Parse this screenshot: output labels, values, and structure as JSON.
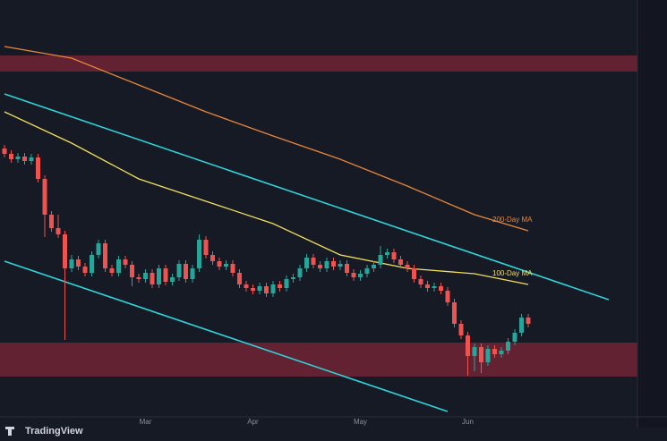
{
  "chart_data": {
    "type": "candlestick",
    "categories": [
      null,
      null,
      null,
      null,
      null,
      null,
      null,
      null,
      null,
      null,
      null,
      null,
      null,
      null,
      null,
      null,
      null,
      null,
      null,
      null,
      null,
      "Mar",
      null,
      null,
      null,
      null,
      null,
      null,
      null,
      null,
      null,
      null,
      null,
      null,
      null,
      null,
      null,
      "Apr",
      null,
      null,
      null,
      null,
      null,
      null,
      null,
      null,
      null,
      null,
      null,
      null,
      null,
      null,
      null,
      "May",
      null,
      null,
      null,
      null,
      null,
      null,
      null,
      null,
      null,
      null,
      null,
      null,
      null,
      null,
      null,
      "Jun",
      null,
      null,
      null,
      null,
      null,
      null,
      null,
      null,
      null
    ],
    "open": [
      299,
      293,
      287,
      290,
      285,
      289,
      265,
      225,
      210,
      203,
      165,
      175,
      167,
      160,
      180,
      193,
      165,
      160,
      175,
      169,
      155,
      153,
      160,
      147,
      165,
      150,
      155,
      170,
      153,
      165,
      197,
      180,
      173,
      167,
      170,
      160,
      147,
      143,
      140,
      145,
      137,
      147,
      143,
      153,
      155,
      165,
      177,
      169,
      165,
      173,
      167,
      170,
      160,
      155,
      159,
      165,
      169,
      180,
      183,
      175,
      169,
      165,
      153,
      147,
      143,
      145,
      140,
      127,
      103,
      90,
      67,
      77,
      60,
      75,
      69,
      73,
      83,
      93,
      110
    ],
    "close": [
      293,
      287,
      290,
      285,
      289,
      265,
      225,
      210,
      203,
      165,
      175,
      167,
      160,
      180,
      193,
      165,
      160,
      175,
      169,
      155,
      153,
      160,
      147,
      165,
      150,
      155,
      170,
      153,
      165,
      197,
      180,
      173,
      167,
      170,
      160,
      147,
      143,
      140,
      145,
      137,
      147,
      143,
      153,
      155,
      165,
      177,
      169,
      165,
      173,
      167,
      170,
      160,
      155,
      159,
      165,
      169,
      180,
      183,
      175,
      169,
      165,
      153,
      147,
      143,
      145,
      140,
      127,
      103,
      90,
      67,
      77,
      60,
      75,
      69,
      73,
      83,
      93,
      110,
      103
    ],
    "high": [
      303,
      297,
      294,
      294,
      293,
      293,
      269,
      229,
      225,
      207,
      180,
      179,
      171,
      184,
      197,
      197,
      169,
      179,
      179,
      173,
      159,
      164,
      164,
      169,
      169,
      159,
      174,
      174,
      169,
      203,
      201,
      184,
      177,
      174,
      174,
      164,
      151,
      147,
      149,
      149,
      151,
      151,
      157,
      159,
      169,
      181,
      181,
      173,
      177,
      177,
      174,
      174,
      164,
      163,
      169,
      173,
      190,
      187,
      187,
      179,
      173,
      169,
      157,
      151,
      149,
      149,
      144,
      131,
      107,
      94,
      81,
      81,
      79,
      79,
      77,
      87,
      97,
      114,
      114
    ],
    "low": [
      289,
      283,
      283,
      281,
      281,
      261,
      200,
      206,
      199,
      85,
      161,
      163,
      156,
      156,
      176,
      161,
      156,
      156,
      165,
      145,
      149,
      149,
      143,
      143,
      146,
      146,
      151,
      149,
      149,
      161,
      176,
      169,
      163,
      163,
      156,
      143,
      139,
      136,
      136,
      133,
      133,
      139,
      139,
      149,
      151,
      161,
      165,
      161,
      161,
      163,
      163,
      156,
      151,
      151,
      155,
      161,
      165,
      176,
      171,
      165,
      161,
      149,
      143,
      139,
      139,
      136,
      123,
      99,
      86,
      45,
      50,
      48,
      56,
      65,
      65,
      69,
      79,
      89,
      99
    ],
    "series": [
      {
        "name": "200-Day MA",
        "color": "#e8873a",
        "x": [
          0,
          10,
          20,
          30,
          40,
          50,
          60,
          70,
          78
        ],
        "values": [
          413,
          400,
          370,
          340,
          313,
          287,
          257,
          225,
          207
        ]
      },
      {
        "name": "100-Day MA",
        "color": "#f2e05a",
        "x": [
          0,
          10,
          20,
          30,
          40,
          50,
          60,
          70,
          78
        ],
        "values": [
          340,
          305,
          265,
          240,
          215,
          180,
          165,
          159,
          147
        ]
      }
    ],
    "trendlines": [
      {
        "x": [
          0,
          90
        ],
        "values": [
          360,
          130
        ],
        "color": "#2fd3d8"
      },
      {
        "x": [
          0,
          66
        ],
        "values": [
          173,
          5
        ],
        "color": "#2fd3d8"
      }
    ],
    "zones": [
      {
        "range": [
          385,
          403
        ]
      },
      {
        "range": [
          44,
          82
        ]
      }
    ],
    "ylim": [
      0,
      457
    ],
    "brand": "TradingView"
  }
}
